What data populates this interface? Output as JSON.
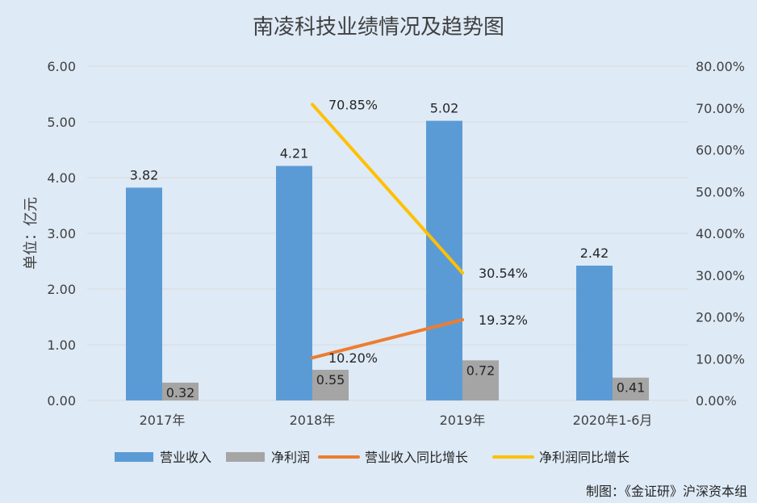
{
  "chart_data": {
    "type": "bar",
    "title": "南凌科技业绩情况及趋势图",
    "ylabel": "单位：亿元",
    "categories": [
      "2017年",
      "2018年",
      "2019年",
      "2020年1-6月"
    ],
    "ylim": [
      0,
      6
    ],
    "y_ticks": [
      "0.00",
      "1.00",
      "2.00",
      "3.00",
      "4.00",
      "5.00",
      "6.00"
    ],
    "y2lim": [
      0,
      0.8
    ],
    "y2_ticks": [
      "0.00%",
      "10.00%",
      "20.00%",
      "30.00%",
      "40.00%",
      "50.00%",
      "60.00%",
      "70.00%",
      "80.00%"
    ],
    "series": [
      {
        "name": "营业收入",
        "kind": "bar",
        "axis": "left",
        "color": "#5b9bd5",
        "values": [
          3.82,
          4.21,
          5.02,
          2.42
        ],
        "labels": [
          "3.82",
          "4.21",
          "5.02",
          "2.42"
        ]
      },
      {
        "name": "净利润",
        "kind": "bar",
        "axis": "left",
        "color": "#a5a5a5",
        "values": [
          0.32,
          0.55,
          0.72,
          0.41
        ],
        "labels": [
          "0.32",
          "0.55",
          "0.72",
          "0.41"
        ]
      },
      {
        "name": "营业收入同比增长",
        "kind": "line",
        "axis": "right",
        "color": "#ed7d31",
        "values": [
          null,
          0.102,
          0.1932,
          null
        ],
        "labels": [
          "",
          "10.20%",
          "19.32%",
          ""
        ]
      },
      {
        "name": "净利润同比增长",
        "kind": "line",
        "axis": "right",
        "color": "#ffc000",
        "values": [
          null,
          0.7085,
          0.3054,
          null
        ],
        "labels": [
          "",
          "70.85%",
          "30.54%",
          ""
        ]
      }
    ],
    "legend_position": "bottom",
    "grid": true,
    "credit": "制图：《金证研》沪深资本组",
    "colors": {
      "background": "#deeaf6",
      "grid": "#d9d9d9"
    }
  }
}
